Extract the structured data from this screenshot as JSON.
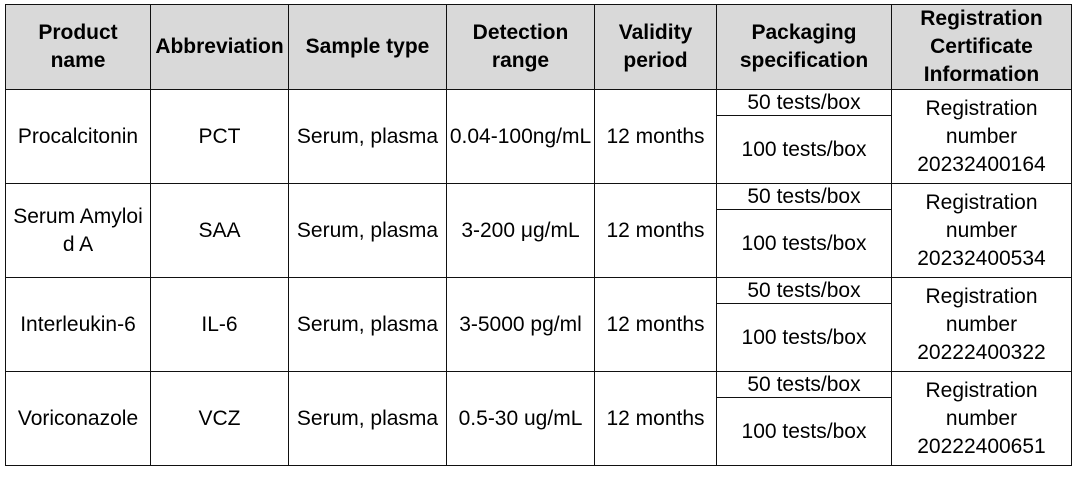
{
  "headers": [
    "Product name",
    "Abbreviation",
    "Sample type",
    "Detection range",
    "Validity period",
    "Packaging specification",
    "Registration Certificate Information"
  ],
  "rows": [
    {
      "product": "Procalcitonin",
      "abbr": "PCT",
      "sample": "Serum, plasma",
      "range": "0.04-100ng/mL",
      "validity": "12 months",
      "pack_a": "50 tests/box",
      "pack_b": "100 tests/box",
      "registration": "Registration number 20232400164"
    },
    {
      "product": "Serum Amyloid A",
      "abbr": "SAA",
      "sample": "Serum, plasma",
      "range": "3-200 μg/mL",
      "validity": "12 months",
      "pack_a": "50 tests/box",
      "pack_b": "100 tests/box",
      "registration": "Registration number 20232400534"
    },
    {
      "product": "Interleukin-6",
      "abbr": "IL-6",
      "sample": "Serum, plasma",
      "range": "3-5000 pg/ml",
      "validity": "12 months",
      "pack_a": "50 tests/box",
      "pack_b": "100 tests/box",
      "registration": "Registration number 20222400322"
    },
    {
      "product": "Voriconazole",
      "abbr": "VCZ",
      "sample": "Serum, plasma",
      "range": "0.5-30 ug/mL",
      "validity": "12 months",
      "pack_a": "50 tests/box",
      "pack_b": "100 tests/box",
      "registration": "Registration number 20222400651"
    }
  ]
}
